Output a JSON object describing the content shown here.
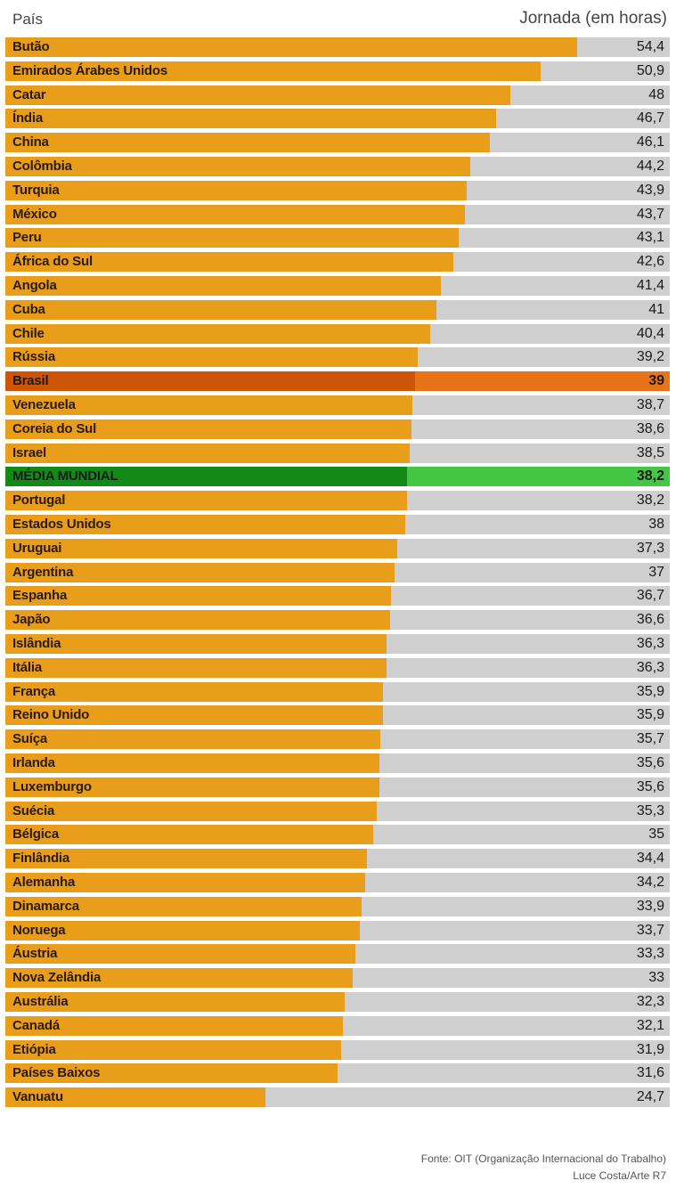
{
  "chart_data": {
    "type": "bar",
    "orientation": "horizontal",
    "xlabel": "País",
    "ylabel": "Jornada (em horas)",
    "categories": [
      "Butão",
      "Emirados Árabes Unidos",
      "Catar",
      "Índia",
      "China",
      "Colômbia",
      "Turquia",
      "México",
      "Peru",
      "África do Sul",
      "Angola",
      "Cuba",
      "Chile",
      "Rússia",
      "Brasil",
      "Venezuela",
      "Coreia do Sul",
      "Israel",
      "MÉDIA MUNDIAL",
      "Portugal",
      "Estados Unidos",
      "Uruguai",
      "Argentina",
      "Espanha",
      "Japão",
      "Islândia",
      "Itália",
      "França",
      "Reino Unido",
      "Suíça",
      "Irlanda",
      "Luxemburgo",
      "Suécia",
      "Bélgica",
      "Finlândia",
      "Alemanha",
      "Dinamarca",
      "Noruega",
      "Áustria",
      "Nova Zelândia",
      "Austrália",
      "Canadá",
      "Etiópia",
      "Países Baixos",
      "Vanuatu"
    ],
    "values": [
      54.4,
      50.9,
      48,
      46.7,
      46.1,
      44.2,
      43.9,
      43.7,
      43.1,
      42.6,
      41.4,
      41,
      40.4,
      39.2,
      39,
      38.7,
      38.6,
      38.5,
      38.2,
      38.2,
      38,
      37.3,
      37,
      36.7,
      36.6,
      36.3,
      36.3,
      35.9,
      35.9,
      35.7,
      35.6,
      35.6,
      35.3,
      35,
      34.4,
      34.2,
      33.9,
      33.7,
      33.3,
      33,
      32.3,
      32.1,
      31.9,
      31.6,
      24.7
    ],
    "value_labels": [
      "54,4",
      "50,9",
      "48",
      "46,7",
      "46,1",
      "44,2",
      "43,9",
      "43,7",
      "43,1",
      "42,6",
      "41,4",
      "41",
      "40,4",
      "39,2",
      "39",
      "38,7",
      "38,6",
      "38,5",
      "38,2",
      "38,2",
      "38",
      "37,3",
      "37",
      "36,7",
      "36,6",
      "36,3",
      "36,3",
      "35,9",
      "35,9",
      "35,7",
      "35,6",
      "35,6",
      "35,3",
      "35",
      "34,4",
      "34,2",
      "33,9",
      "33,7",
      "33,3",
      "33",
      "32,3",
      "32,1",
      "31,9",
      "31,6",
      "24,7"
    ],
    "highlights": {
      "Brasil": "brasil",
      "MÉDIA MUNDIAL": "media"
    },
    "xlim": [
      0,
      63.2
    ],
    "colors": {
      "bar": "#e89e1a",
      "track": "#cfcfcf",
      "brasil": "#cc5508",
      "media": "#138a18"
    }
  },
  "header": {
    "left": "País",
    "right": "Jornada (em horas)"
  },
  "footer": {
    "source": "Fonte: OIT (Organização Internacional do Trabalho)",
    "credit": "Luce Costa/Arte R7"
  }
}
